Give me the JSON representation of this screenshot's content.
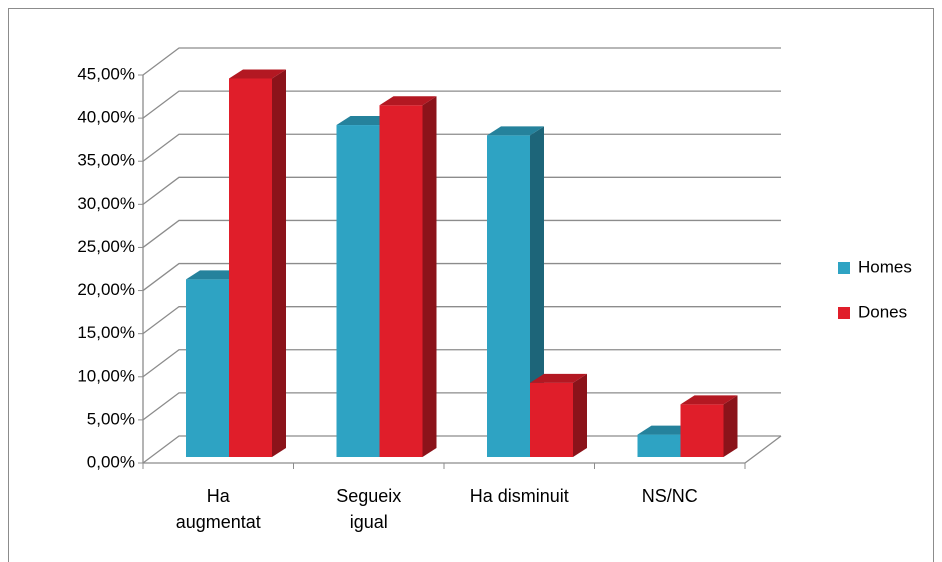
{
  "chart_data": {
    "type": "bar3d",
    "categories": [
      "Ha augmentat",
      "Segueix igual",
      "Ha disminuit",
      "NS/NC"
    ],
    "series": [
      {
        "name": "Homes",
        "color": "#2ea3c3",
        "values": [
          20.6,
          38.5,
          37.3,
          2.6
        ]
      },
      {
        "name": "Dones",
        "color": "#e01e2a",
        "values": [
          43.9,
          40.8,
          8.6,
          6.1
        ]
      }
    ],
    "ylim": [
      0,
      45
    ],
    "yticks": [
      {
        "value": 0,
        "label": "0,00%"
      },
      {
        "value": 5,
        "label": "5,00%"
      },
      {
        "value": 10,
        "label": "10,00%"
      },
      {
        "value": 15,
        "label": "15,00%"
      },
      {
        "value": 20,
        "label": "20,00%"
      },
      {
        "value": 25,
        "label": "25,00%"
      },
      {
        "value": 30,
        "label": "30,00%"
      },
      {
        "value": 35,
        "label": "35,00%"
      },
      {
        "value": 40,
        "label": "40,00%"
      },
      {
        "value": 45,
        "label": "45,00%"
      }
    ],
    "grid": true,
    "legend": "right"
  }
}
